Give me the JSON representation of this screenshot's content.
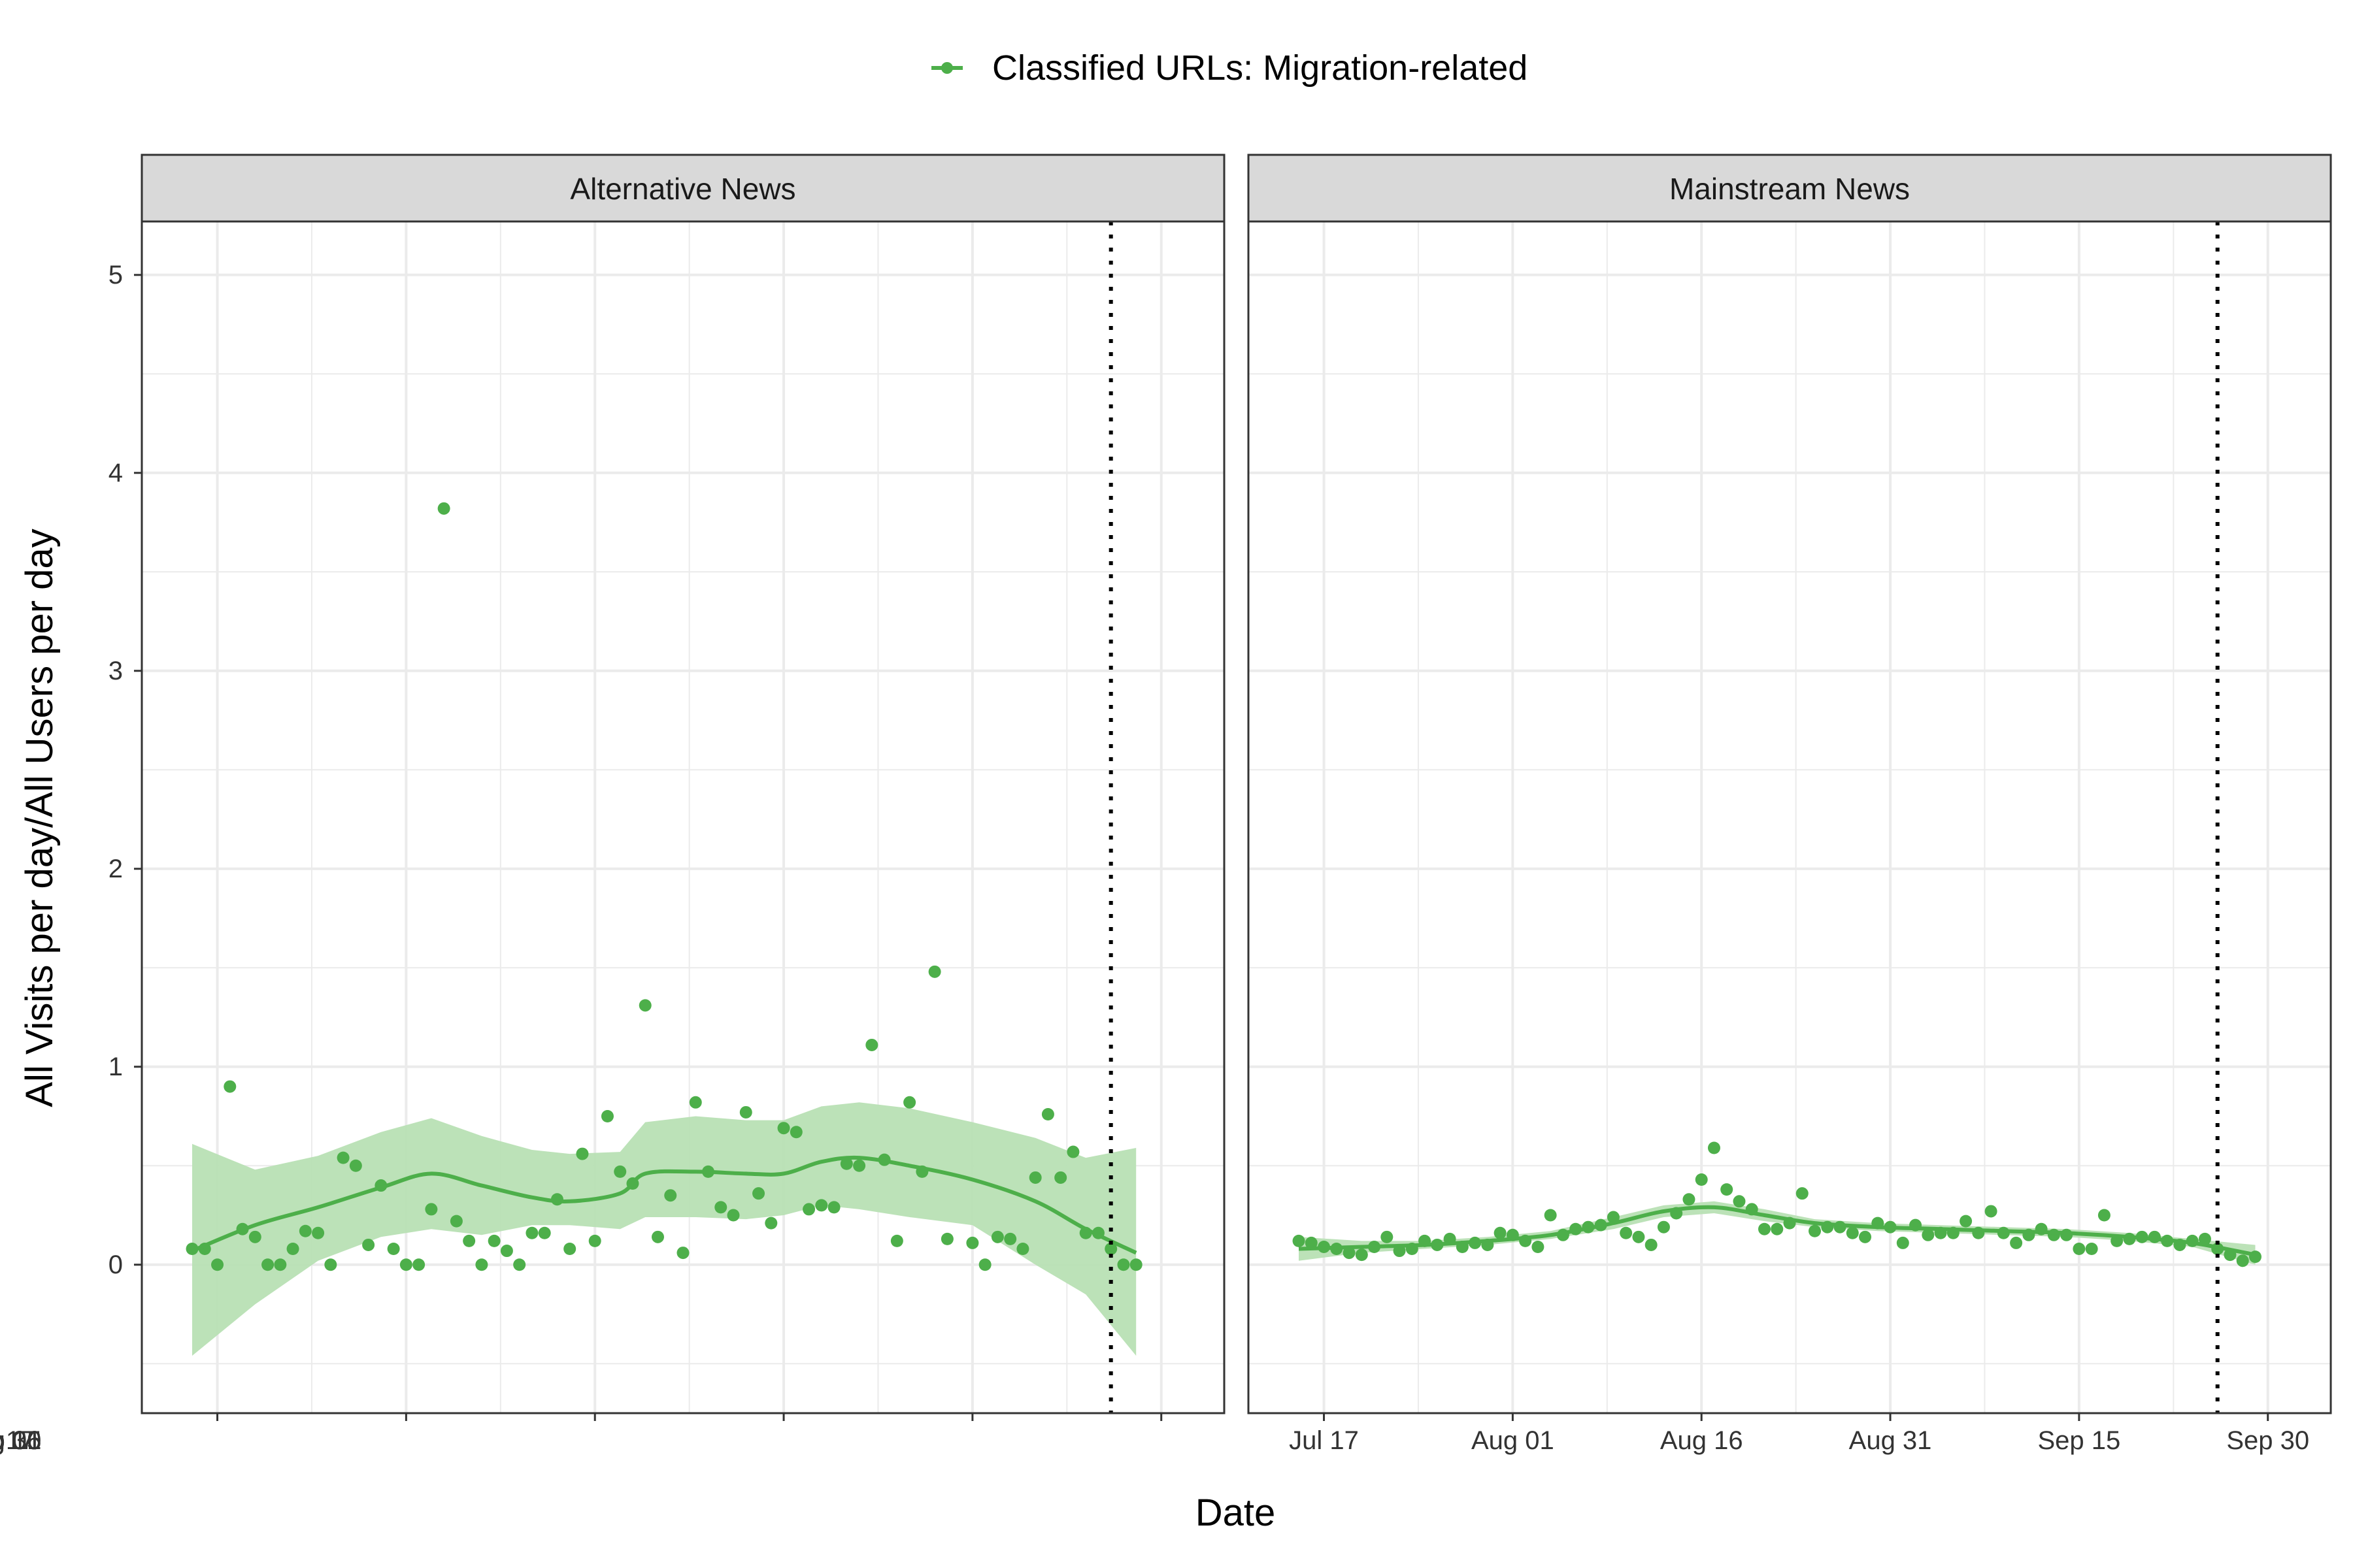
{
  "chart_data": {
    "type": "scatter",
    "xlabel": "Date",
    "ylabel": "All Visits per day/All Users per day",
    "x_ticks": [
      "Jul 17",
      "Aug 01",
      "Aug 16",
      "Aug 31",
      "Sep 15",
      "Sep 30"
    ],
    "y_ticks": [
      "0",
      "1",
      "2",
      "3",
      "4",
      "5"
    ],
    "ylim": [
      -0.75,
      5.27
    ],
    "xlim": [
      "2024-07-11",
      "2024-10-05"
    ],
    "grid": true,
    "legend_position": "top",
    "legend": [
      {
        "label": "Classified URLs: Migration-related",
        "color": "#4DAF4A"
      }
    ],
    "colors": {
      "series": "#4DAF4A",
      "ribbon": "#B8E0B4",
      "strip_fill": "#D9D9D9",
      "grid": "#EBEBEB"
    },
    "reference_line_date": "2024-09-26",
    "panels": [
      {
        "title": "Alternative News",
        "points": [
          [
            "2024-07-15",
            0.08
          ],
          [
            "2024-07-16",
            0.08
          ],
          [
            "2024-07-17",
            0.0
          ],
          [
            "2024-07-18",
            0.9
          ],
          [
            "2024-07-19",
            0.18
          ],
          [
            "2024-07-20",
            0.14
          ],
          [
            "2024-07-21",
            0.0
          ],
          [
            "2024-07-22",
            0.0
          ],
          [
            "2024-07-23",
            0.08
          ],
          [
            "2024-07-24",
            0.17
          ],
          [
            "2024-07-25",
            0.16
          ],
          [
            "2024-07-26",
            0.0
          ],
          [
            "2024-07-27",
            0.54
          ],
          [
            "2024-07-28",
            0.5
          ],
          [
            "2024-07-29",
            0.1
          ],
          [
            "2024-07-30",
            0.4
          ],
          [
            "2024-07-31",
            0.08
          ],
          [
            "2024-08-01",
            0.0
          ],
          [
            "2024-08-02",
            0.0
          ],
          [
            "2024-08-03",
            0.28
          ],
          [
            "2024-08-04",
            3.82
          ],
          [
            "2024-08-05",
            0.22
          ],
          [
            "2024-08-06",
            0.12
          ],
          [
            "2024-08-07",
            0.0
          ],
          [
            "2024-08-08",
            0.12
          ],
          [
            "2024-08-09",
            0.07
          ],
          [
            "2024-08-10",
            0.0
          ],
          [
            "2024-08-11",
            0.16
          ],
          [
            "2024-08-12",
            0.16
          ],
          [
            "2024-08-13",
            0.33
          ],
          [
            "2024-08-14",
            0.08
          ],
          [
            "2024-08-15",
            0.56
          ],
          [
            "2024-08-16",
            0.12
          ],
          [
            "2024-08-17",
            0.75
          ],
          [
            "2024-08-18",
            0.47
          ],
          [
            "2024-08-19",
            0.41
          ],
          [
            "2024-08-20",
            1.31
          ],
          [
            "2024-08-21",
            0.14
          ],
          [
            "2024-08-22",
            0.35
          ],
          [
            "2024-08-23",
            0.06
          ],
          [
            "2024-08-24",
            0.82
          ],
          [
            "2024-08-25",
            0.47
          ],
          [
            "2024-08-26",
            0.29
          ],
          [
            "2024-08-27",
            0.25
          ],
          [
            "2024-08-28",
            0.77
          ],
          [
            "2024-08-29",
            0.36
          ],
          [
            "2024-08-30",
            0.21
          ],
          [
            "2024-08-31",
            0.69
          ],
          [
            "2024-09-01",
            0.67
          ],
          [
            "2024-09-02",
            0.28
          ],
          [
            "2024-09-03",
            0.3
          ],
          [
            "2024-09-04",
            0.29
          ],
          [
            "2024-09-05",
            0.51
          ],
          [
            "2024-09-06",
            0.5
          ],
          [
            "2024-09-07",
            1.11
          ],
          [
            "2024-09-08",
            0.53
          ],
          [
            "2024-09-09",
            0.12
          ],
          [
            "2024-09-10",
            0.82
          ],
          [
            "2024-09-11",
            0.47
          ],
          [
            "2024-09-12",
            1.48
          ],
          [
            "2024-09-13",
            0.13
          ],
          [
            "2024-09-15",
            0.11
          ],
          [
            "2024-09-16",
            0.0
          ],
          [
            "2024-09-17",
            0.14
          ],
          [
            "2024-09-18",
            0.13
          ],
          [
            "2024-09-19",
            0.08
          ],
          [
            "2024-09-20",
            0.44
          ],
          [
            "2024-09-21",
            0.76
          ],
          [
            "2024-09-22",
            0.44
          ],
          [
            "2024-09-23",
            0.57
          ],
          [
            "2024-09-24",
            0.16
          ],
          [
            "2024-09-25",
            0.16
          ],
          [
            "2024-09-26",
            0.08
          ],
          [
            "2024-09-27",
            0.0
          ],
          [
            "2024-09-28",
            0.0
          ]
        ],
        "smooth": [
          [
            "2024-07-15",
            0.07
          ],
          [
            "2024-07-20",
            0.2
          ],
          [
            "2024-07-25",
            0.29
          ],
          [
            "2024-07-30",
            0.39
          ],
          [
            "2024-08-03",
            0.46
          ],
          [
            "2024-08-07",
            0.4
          ],
          [
            "2024-08-11",
            0.34
          ],
          [
            "2024-08-14",
            0.32
          ],
          [
            "2024-08-18",
            0.36
          ],
          [
            "2024-08-20",
            0.46
          ],
          [
            "2024-08-24",
            0.47
          ],
          [
            "2024-08-28",
            0.46
          ],
          [
            "2024-08-31",
            0.46
          ],
          [
            "2024-09-03",
            0.52
          ],
          [
            "2024-09-06",
            0.54
          ],
          [
            "2024-09-10",
            0.5
          ],
          [
            "2024-09-15",
            0.43
          ],
          [
            "2024-09-20",
            0.32
          ],
          [
            "2024-09-24",
            0.18
          ],
          [
            "2024-09-28",
            0.06
          ]
        ],
        "ribbon_lower": [
          -0.46,
          -0.2,
          0.02,
          0.14,
          0.18,
          0.15,
          0.2,
          0.2,
          0.18,
          0.24,
          0.24,
          0.23,
          0.25,
          0.3,
          0.28,
          0.24,
          0.2,
          0.0,
          -0.15,
          -0.46
        ],
        "ribbon_upper": [
          0.61,
          0.48,
          0.55,
          0.67,
          0.74,
          0.65,
          0.58,
          0.56,
          0.57,
          0.72,
          0.75,
          0.73,
          0.73,
          0.8,
          0.82,
          0.79,
          0.72,
          0.64,
          0.54,
          0.59
        ]
      },
      {
        "title": "Mainstream News",
        "points": [
          [
            "2024-07-15",
            0.12
          ],
          [
            "2024-07-16",
            0.11
          ],
          [
            "2024-07-17",
            0.09
          ],
          [
            "2024-07-18",
            0.08
          ],
          [
            "2024-07-19",
            0.06
          ],
          [
            "2024-07-20",
            0.05
          ],
          [
            "2024-07-21",
            0.09
          ],
          [
            "2024-07-22",
            0.14
          ],
          [
            "2024-07-23",
            0.07
          ],
          [
            "2024-07-24",
            0.08
          ],
          [
            "2024-07-25",
            0.12
          ],
          [
            "2024-07-26",
            0.1
          ],
          [
            "2024-07-27",
            0.13
          ],
          [
            "2024-07-28",
            0.09
          ],
          [
            "2024-07-29",
            0.11
          ],
          [
            "2024-07-30",
            0.1
          ],
          [
            "2024-07-31",
            0.16
          ],
          [
            "2024-08-01",
            0.15
          ],
          [
            "2024-08-02",
            0.12
          ],
          [
            "2024-08-03",
            0.09
          ],
          [
            "2024-08-04",
            0.25
          ],
          [
            "2024-08-05",
            0.15
          ],
          [
            "2024-08-06",
            0.18
          ],
          [
            "2024-08-07",
            0.19
          ],
          [
            "2024-08-08",
            0.2
          ],
          [
            "2024-08-09",
            0.24
          ],
          [
            "2024-08-10",
            0.16
          ],
          [
            "2024-08-11",
            0.14
          ],
          [
            "2024-08-12",
            0.1
          ],
          [
            "2024-08-13",
            0.19
          ],
          [
            "2024-08-14",
            0.26
          ],
          [
            "2024-08-15",
            0.33
          ],
          [
            "2024-08-16",
            0.43
          ],
          [
            "2024-08-17",
            0.59
          ],
          [
            "2024-08-18",
            0.38
          ],
          [
            "2024-08-19",
            0.32
          ],
          [
            "2024-08-20",
            0.28
          ],
          [
            "2024-08-21",
            0.18
          ],
          [
            "2024-08-22",
            0.18
          ],
          [
            "2024-08-23",
            0.21
          ],
          [
            "2024-08-24",
            0.36
          ],
          [
            "2024-08-25",
            0.17
          ],
          [
            "2024-08-26",
            0.19
          ],
          [
            "2024-08-27",
            0.19
          ],
          [
            "2024-08-28",
            0.16
          ],
          [
            "2024-08-29",
            0.14
          ],
          [
            "2024-08-30",
            0.21
          ],
          [
            "2024-08-31",
            0.19
          ],
          [
            "2024-09-01",
            0.11
          ],
          [
            "2024-09-02",
            0.2
          ],
          [
            "2024-09-03",
            0.15
          ],
          [
            "2024-09-04",
            0.16
          ],
          [
            "2024-09-05",
            0.16
          ],
          [
            "2024-09-06",
            0.22
          ],
          [
            "2024-09-07",
            0.16
          ],
          [
            "2024-09-08",
            0.27
          ],
          [
            "2024-09-09",
            0.16
          ],
          [
            "2024-09-10",
            0.11
          ],
          [
            "2024-09-11",
            0.15
          ],
          [
            "2024-09-12",
            0.18
          ],
          [
            "2024-09-13",
            0.15
          ],
          [
            "2024-09-14",
            0.15
          ],
          [
            "2024-09-15",
            0.08
          ],
          [
            "2024-09-16",
            0.08
          ],
          [
            "2024-09-17",
            0.25
          ],
          [
            "2024-09-18",
            0.12
          ],
          [
            "2024-09-19",
            0.13
          ],
          [
            "2024-09-20",
            0.14
          ],
          [
            "2024-09-21",
            0.14
          ],
          [
            "2024-09-22",
            0.12
          ],
          [
            "2024-09-23",
            0.1
          ],
          [
            "2024-09-24",
            0.12
          ],
          [
            "2024-09-25",
            0.13
          ],
          [
            "2024-09-26",
            0.08
          ],
          [
            "2024-09-27",
            0.05
          ],
          [
            "2024-09-28",
            0.02
          ],
          [
            "2024-09-29",
            0.04
          ]
        ],
        "smooth": [
          [
            "2024-07-15",
            0.08
          ],
          [
            "2024-07-20",
            0.09
          ],
          [
            "2024-07-25",
            0.1
          ],
          [
            "2024-07-30",
            0.12
          ],
          [
            "2024-08-04",
            0.15
          ],
          [
            "2024-08-09",
            0.21
          ],
          [
            "2024-08-13",
            0.27
          ],
          [
            "2024-08-17",
            0.29
          ],
          [
            "2024-08-21",
            0.25
          ],
          [
            "2024-08-25",
            0.21
          ],
          [
            "2024-08-30",
            0.19
          ],
          [
            "2024-09-04",
            0.18
          ],
          [
            "2024-09-09",
            0.17
          ],
          [
            "2024-09-14",
            0.16
          ],
          [
            "2024-09-19",
            0.14
          ],
          [
            "2024-09-24",
            0.11
          ],
          [
            "2024-09-29",
            0.05
          ]
        ],
        "ribbon_lower": [
          0.02,
          0.06,
          0.08,
          0.1,
          0.13,
          0.18,
          0.24,
          0.26,
          0.22,
          0.19,
          0.17,
          0.16,
          0.15,
          0.14,
          0.12,
          0.09,
          0.0
        ],
        "ribbon_upper": [
          0.14,
          0.12,
          0.12,
          0.14,
          0.17,
          0.24,
          0.3,
          0.32,
          0.28,
          0.23,
          0.21,
          0.2,
          0.19,
          0.18,
          0.16,
          0.13,
          0.1
        ]
      }
    ]
  }
}
